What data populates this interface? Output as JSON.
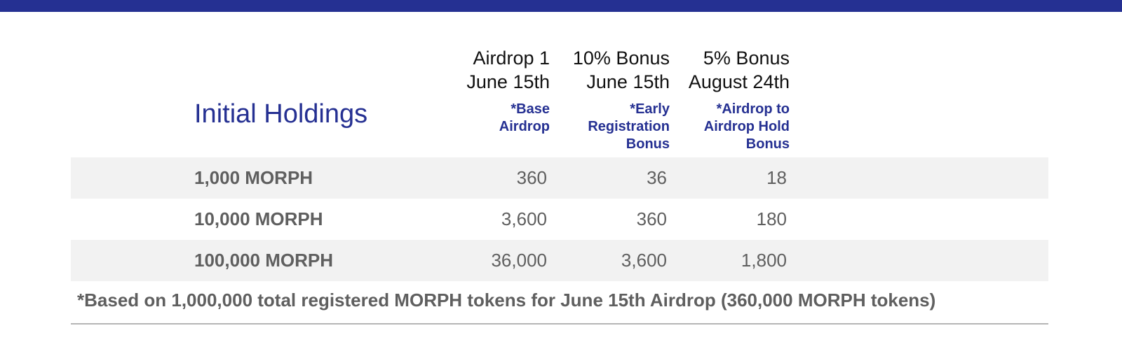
{
  "colors": {
    "accent": "#253092",
    "row_shade": "#f2f2f2",
    "text_gray": "#5f5f5f",
    "rule": "#b5b5b5"
  },
  "table": {
    "title": "Initial Holdings",
    "columns": [
      {
        "line1": "Airdrop 1",
        "line2": "June 15th",
        "note_lines": [
          "*Base",
          "Airdrop"
        ]
      },
      {
        "line1": "10% Bonus",
        "line2": "June 15th",
        "note_lines": [
          "*Early",
          "Registration",
          "Bonus"
        ]
      },
      {
        "line1": "5% Bonus",
        "line2": "August 24th",
        "note_lines": [
          "*Airdrop to",
          "Airdrop Hold",
          "Bonus"
        ]
      }
    ],
    "rows": [
      {
        "holding": "1,000 MORPH",
        "values": [
          "360",
          "36",
          "18"
        ]
      },
      {
        "holding": "10,000 MORPH",
        "values": [
          "3,600",
          "360",
          "180"
        ]
      },
      {
        "holding": "100,000 MORPH",
        "values": [
          "36,000",
          "3,600",
          "1,800"
        ]
      }
    ],
    "footnote": "*Based on 1,000,000 total registered MORPH tokens for June 15th Airdrop (360,000 MORPH tokens)"
  }
}
